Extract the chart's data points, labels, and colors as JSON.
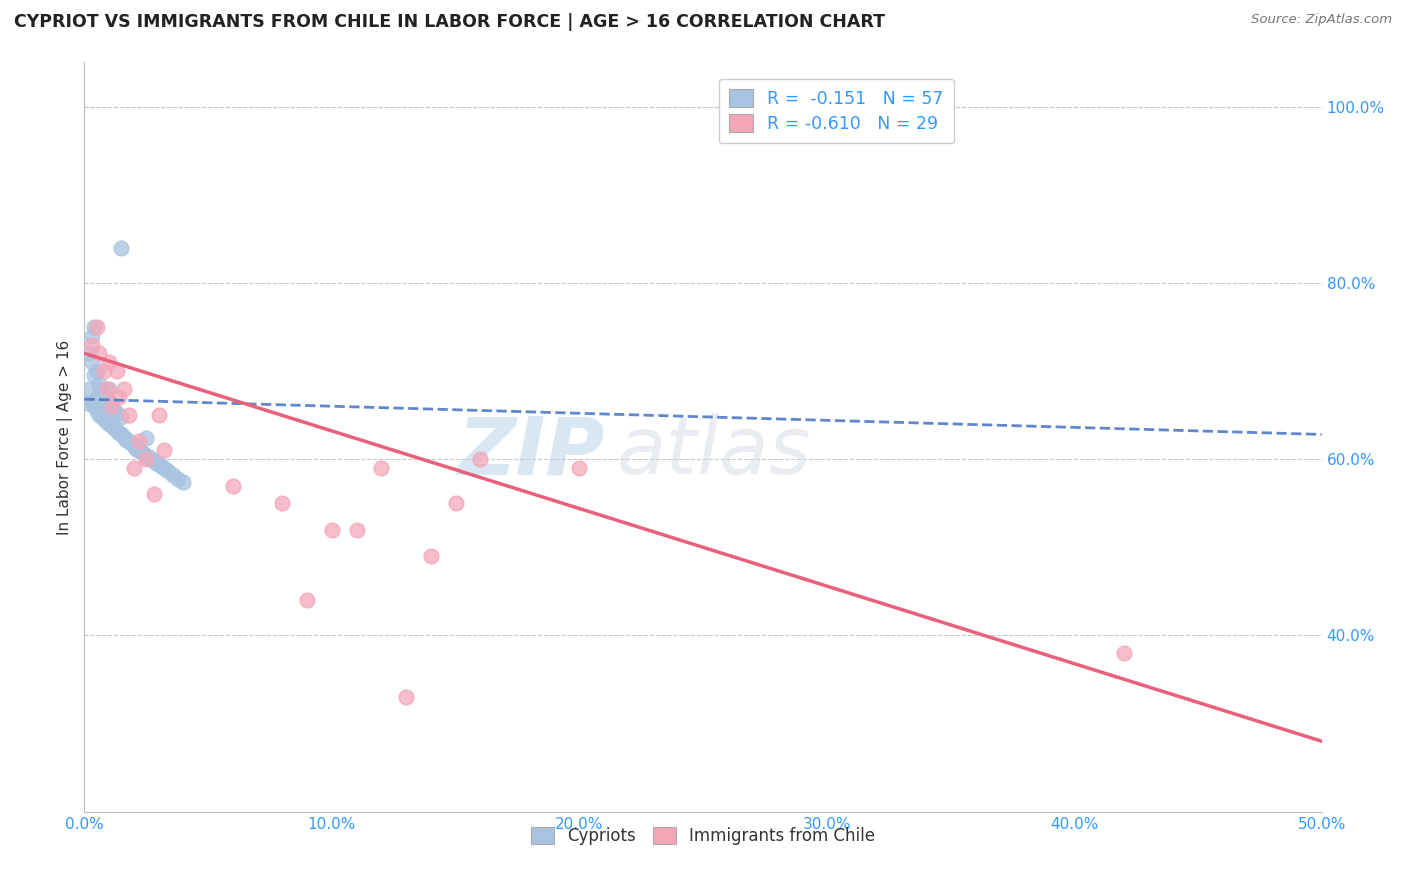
{
  "title": "CYPRIOT VS IMMIGRANTS FROM CHILE IN LABOR FORCE | AGE > 16 CORRELATION CHART",
  "source": "Source: ZipAtlas.com",
  "ylabel": "In Labor Force | Age > 16",
  "xlim": [
    0.0,
    0.5
  ],
  "ylim": [
    0.2,
    1.05
  ],
  "xticks": [
    0.0,
    0.1,
    0.2,
    0.3,
    0.4,
    0.5
  ],
  "yticks_right": [
    0.4,
    0.6,
    0.8,
    1.0
  ],
  "cypriot_color": "#a8c4e0",
  "chile_color": "#f4a7b9",
  "cypriot_line_color": "#4472c4",
  "chile_line_color": "#e8607a",
  "background_color": "#ffffff",
  "grid_color": "#c8c8c8",
  "watermark_zip": "ZIP",
  "watermark_atlas": "atlas",
  "cypriot_x": [
    0.001,
    0.002,
    0.002,
    0.003,
    0.003,
    0.003,
    0.004,
    0.004,
    0.004,
    0.005,
    0.005,
    0.005,
    0.006,
    0.006,
    0.006,
    0.007,
    0.007,
    0.007,
    0.008,
    0.008,
    0.009,
    0.009,
    0.01,
    0.01,
    0.01,
    0.011,
    0.011,
    0.012,
    0.012,
    0.013,
    0.013,
    0.014,
    0.015,
    0.015,
    0.016,
    0.017,
    0.018,
    0.019,
    0.02,
    0.021,
    0.022,
    0.023,
    0.024,
    0.025,
    0.025,
    0.026,
    0.027,
    0.028,
    0.029,
    0.03,
    0.031,
    0.032,
    0.034,
    0.036,
    0.038,
    0.04,
    0.015
  ],
  "cypriot_y": [
    0.664,
    0.68,
    0.72,
    0.665,
    0.71,
    0.74,
    0.66,
    0.695,
    0.75,
    0.655,
    0.67,
    0.7,
    0.65,
    0.668,
    0.685,
    0.648,
    0.665,
    0.68,
    0.645,
    0.668,
    0.642,
    0.67,
    0.64,
    0.66,
    0.68,
    0.638,
    0.658,
    0.635,
    0.655,
    0.632,
    0.652,
    0.63,
    0.628,
    0.648,
    0.625,
    0.622,
    0.62,
    0.618,
    0.615,
    0.612,
    0.61,
    0.608,
    0.606,
    0.604,
    0.624,
    0.602,
    0.6,
    0.598,
    0.596,
    0.594,
    0.592,
    0.59,
    0.586,
    0.582,
    0.578,
    0.574,
    0.84
  ],
  "chile_x": [
    0.003,
    0.005,
    0.006,
    0.008,
    0.009,
    0.01,
    0.011,
    0.013,
    0.014,
    0.016,
    0.018,
    0.02,
    0.022,
    0.025,
    0.028,
    0.03,
    0.032,
    0.06,
    0.08,
    0.09,
    0.1,
    0.11,
    0.12,
    0.14,
    0.15,
    0.16,
    0.2,
    0.42,
    0.13
  ],
  "chile_y": [
    0.73,
    0.75,
    0.72,
    0.7,
    0.68,
    0.71,
    0.66,
    0.7,
    0.67,
    0.68,
    0.65,
    0.59,
    0.62,
    0.6,
    0.56,
    0.65,
    0.61,
    0.57,
    0.55,
    0.44,
    0.52,
    0.52,
    0.59,
    0.49,
    0.55,
    0.6,
    0.59,
    0.38,
    0.33
  ],
  "cy_line_x0": 0.0,
  "cy_line_x1": 0.5,
  "cy_line_y0": 0.668,
  "cy_line_y1": 0.628,
  "ch_line_x0": 0.0,
  "ch_line_x1": 0.5,
  "ch_line_y0": 0.72,
  "ch_line_y1": 0.28
}
